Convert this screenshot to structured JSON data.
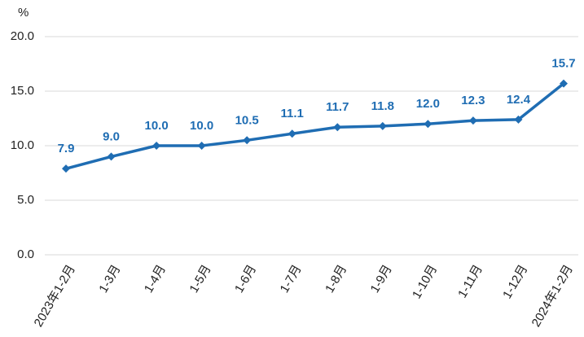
{
  "chart_data": {
    "type": "line",
    "y_label": "%",
    "categories": [
      "2023年1-2月",
      "1-3月",
      "1-4月",
      "1-5月",
      "1-6月",
      "1-7月",
      "1-8月",
      "1-9月",
      "1-10月",
      "1-11月",
      "1-12月",
      "2024年1-2月"
    ],
    "series": [
      {
        "color": "#1f6db3",
        "values": [
          7.9,
          9.0,
          10.0,
          10.0,
          10.5,
          11.1,
          11.7,
          11.8,
          12.0,
          12.3,
          12.4,
          15.7
        ],
        "value_labels": [
          "7.9",
          "9.0",
          "10.0",
          "10.0",
          "10.5",
          "11.1",
          "11.7",
          "11.8",
          "12.0",
          "12.3",
          "12.4",
          "15.7"
        ]
      }
    ],
    "ylim": [
      0,
      20
    ],
    "yticks": [
      {
        "value": 0,
        "label": "0.0"
      },
      {
        "value": 5,
        "label": "5.0"
      },
      {
        "value": 10,
        "label": "10.0"
      },
      {
        "value": 15,
        "label": "15.0"
      },
      {
        "value": 20,
        "label": "20.0"
      }
    ],
    "grid": true
  }
}
